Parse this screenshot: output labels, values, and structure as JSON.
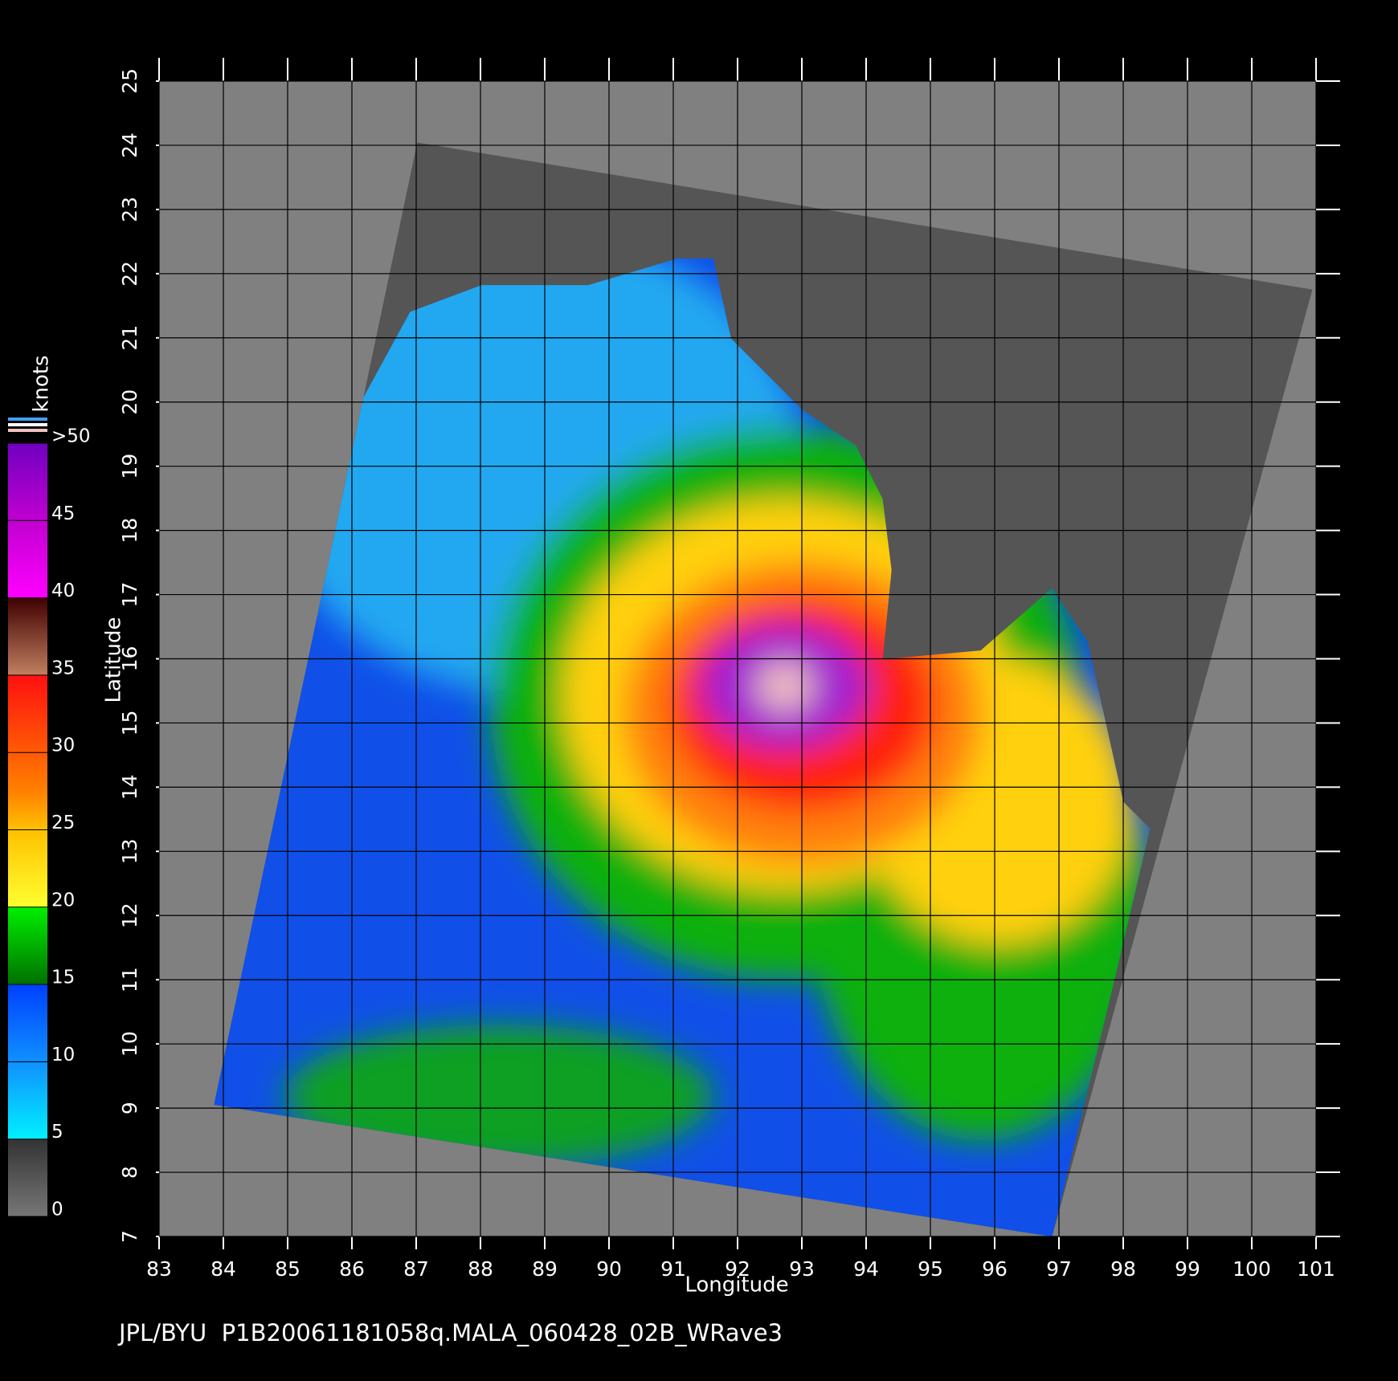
{
  "map": {
    "xlabel": "Longitude",
    "ylabel": "Latitude",
    "xlim": [
      83,
      101
    ],
    "ylim": [
      7,
      25
    ],
    "xticks": [
      83,
      84,
      85,
      86,
      87,
      88,
      89,
      90,
      91,
      92,
      93,
      94,
      95,
      96,
      97,
      98,
      99,
      100,
      101
    ],
    "yticks": [
      7,
      8,
      9,
      10,
      11,
      12,
      13,
      14,
      15,
      16,
      17,
      18,
      19,
      20,
      21,
      22,
      23,
      24,
      25
    ],
    "colorbar": {
      "label": "knots",
      "lim": [
        0,
        50
      ],
      "ticks": [
        0,
        5,
        10,
        15,
        20,
        25,
        30,
        35,
        40,
        45,
        {
          "value": 50,
          "label": ">50"
        }
      ]
    },
    "footer": "JPL/BYU  P1B20061181058q.MALA_060428_02B_WRave3"
  }
}
